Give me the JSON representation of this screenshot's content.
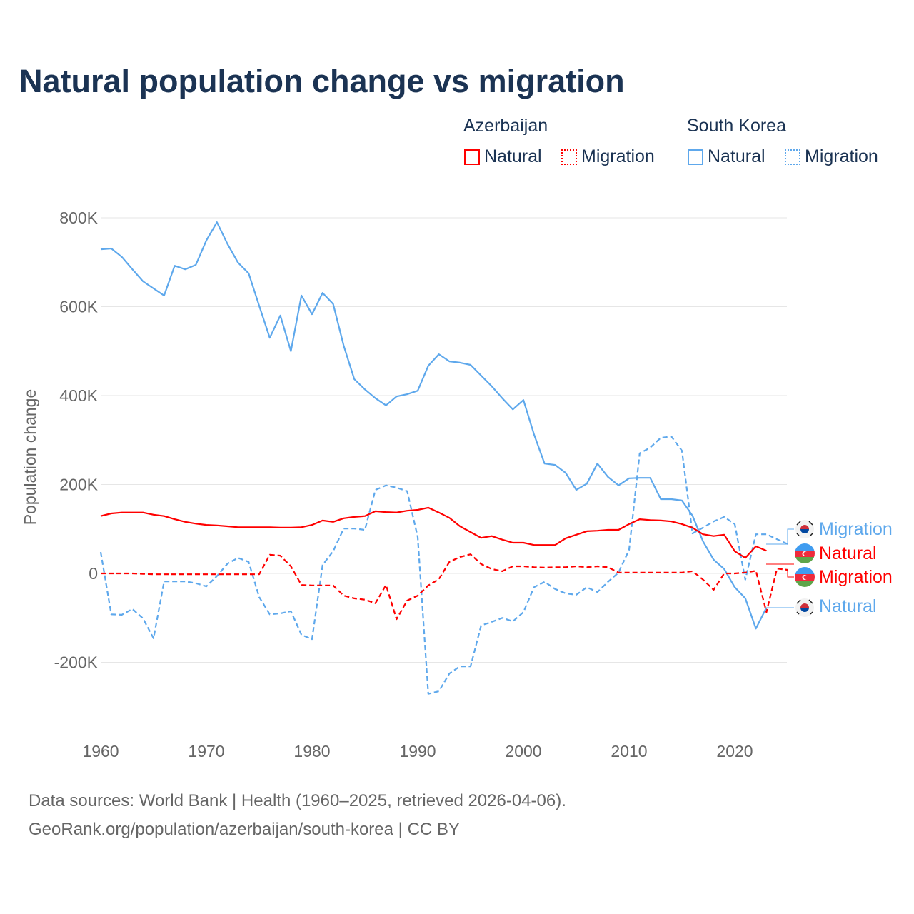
{
  "title": "Natural population change vs migration",
  "legend": {
    "groups": [
      {
        "name": "Azerbaijan",
        "items": [
          "Natural",
          "Migration"
        ]
      },
      {
        "name": "South Korea",
        "items": [
          "Natural",
          "Migration"
        ]
      }
    ]
  },
  "colors": {
    "azerbaijan": "#ff0000",
    "south_korea": "#5ea8ec",
    "title": "#1b3353"
  },
  "footer": {
    "line1": "Data sources: World Bank | Health (1960–2025, retrieved 2026-04-06).",
    "line2": "GeoRank.org/population/azerbaijan/south-korea | CC BY"
  },
  "end_labels": {
    "sk_migration": "Migration",
    "az_natural": "Natural",
    "az_migration": "Migration",
    "sk_natural": "Natural"
  },
  "chart_data": {
    "type": "line",
    "title": "Natural population change vs migration",
    "xlabel": "",
    "ylabel": "Population change",
    "xlim": [
      1960,
      2025
    ],
    "ylim": [
      -300000,
      850000
    ],
    "x_ticks": [
      1960,
      1970,
      1980,
      1990,
      2000,
      2010,
      2020
    ],
    "x_tick_labels": [
      "1960",
      "1970",
      "1980",
      "1990",
      "2000",
      "2010",
      "2020"
    ],
    "y_ticks": [
      -200000,
      0,
      200000,
      400000,
      600000,
      800000
    ],
    "y_tick_labels": [
      "-200K",
      "0",
      "200K",
      "400K",
      "600K",
      "800K"
    ],
    "grid": true,
    "legend_position": "top-right",
    "series": [
      {
        "name": "South Korea Natural",
        "country": "South Korea",
        "kind": "Natural",
        "start_year": 1960,
        "unit": "thousands",
        "values": [
          729,
          731,
          712,
          684,
          657,
          641,
          625,
          692,
          684,
          694,
          749,
          790,
          741,
          699,
          675,
          602,
          530,
          580,
          500,
          625,
          583,
          631,
          606,
          512,
          437,
          414,
          394,
          378,
          398,
          403,
          411,
          467,
          493,
          477,
          474,
          469,
          445,
          421,
          394,
          369,
          390,
          313,
          247,
          244,
          226,
          188,
          202,
          247,
          217,
          198,
          214,
          215,
          215,
          167,
          167,
          164,
          130,
          72,
          31,
          10,
          -31,
          -56,
          -124,
          -77
        ]
      },
      {
        "name": "South Korea Migration",
        "country": "South Korea",
        "kind": "Migration",
        "start_year": 1960,
        "unit": "thousands",
        "values": [
          48,
          -92,
          -93,
          -80,
          -101,
          -146,
          -18,
          -18,
          -18,
          -22,
          -29,
          -6,
          22,
          35,
          26,
          -53,
          -92,
          -90,
          -85,
          -138,
          -148,
          19,
          50,
          101,
          101,
          98,
          188,
          198,
          193,
          185,
          82,
          -271,
          -265,
          -225,
          -209,
          -209,
          -117,
          -109,
          -100,
          -108,
          -87,
          -31,
          -19,
          -35,
          -45,
          -48,
          -31,
          -42,
          -19,
          2,
          53,
          270,
          283,
          305,
          308,
          276,
          90,
          103,
          117,
          127,
          111,
          -14,
          88,
          88,
          77,
          66
        ]
      },
      {
        "name": "Azerbaijan Natural",
        "country": "Azerbaijan",
        "kind": "Natural",
        "start_year": 1960,
        "unit": "thousands",
        "values": [
          129,
          135,
          137,
          137,
          137,
          132,
          129,
          122,
          116,
          112,
          109,
          108,
          106,
          104,
          104,
          104,
          104,
          103,
          103,
          104,
          109,
          119,
          116,
          124,
          127,
          129,
          140,
          138,
          137,
          141,
          143,
          148,
          137,
          125,
          106,
          93,
          80,
          84,
          76,
          69,
          69,
          64,
          64,
          64,
          79,
          87,
          95,
          96,
          98,
          98,
          111,
          122,
          120,
          119,
          117,
          111,
          103,
          88,
          84,
          87,
          50,
          35,
          61,
          51
        ]
      },
      {
        "name": "Azerbaijan Migration",
        "country": "Azerbaijan",
        "kind": "Migration",
        "start_year": 1960,
        "unit": "thousands",
        "values": [
          0,
          0,
          0,
          0,
          -1,
          -2,
          -2,
          -2,
          -2,
          -2,
          -2,
          -2,
          -2,
          -2,
          -2,
          -2,
          42,
          40,
          16,
          -26,
          -27,
          -27,
          -27,
          -50,
          -56,
          -59,
          -67,
          -26,
          -103,
          -61,
          -50,
          -27,
          -13,
          26,
          37,
          43,
          21,
          10,
          5,
          16,
          16,
          14,
          13,
          14,
          14,
          16,
          14,
          16,
          14,
          2,
          2,
          2,
          2,
          2,
          2,
          2,
          5,
          -14,
          -37,
          0,
          0,
          2,
          6,
          -87,
          11,
          8
        ]
      }
    ]
  }
}
